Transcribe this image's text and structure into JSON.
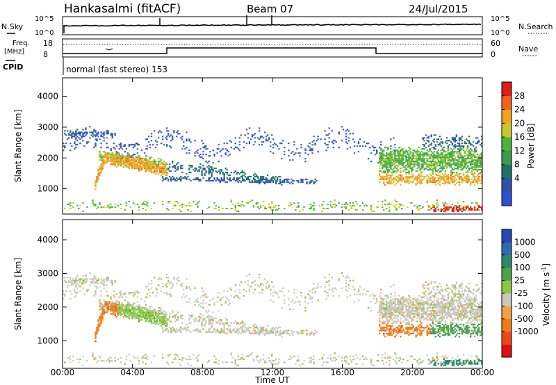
{
  "header": {
    "station": "Hankasalmi (fitACF)",
    "beam": "Beam 07",
    "date": "24/Jul/2015"
  },
  "noise_panel": {
    "left_label": "N.Sky",
    "right_label": "N.Search",
    "left_ticks": [
      "10^5",
      "10^0"
    ],
    "right_ticks": [
      "10^5",
      "10^0"
    ]
  },
  "freq_panel": {
    "left_label_line1": "Freq.",
    "left_label_line2": "[MHz]",
    "left_ticks": [
      "18",
      "8"
    ],
    "right_label": "Nave",
    "right_ticks": [
      "60",
      "0"
    ]
  },
  "cpid": {
    "label": "CPID",
    "text": "normal (fast stereo) 153"
  },
  "chart_data": [
    {
      "type": "heatmap",
      "title": "",
      "xlabel": "",
      "ylabel": "Slant Range [km]",
      "xlim": [
        0,
        24
      ],
      "ylim": [
        180,
        4600
      ],
      "y_ticks": [
        "4000",
        "3000",
        "2000",
        "1000"
      ],
      "colorbar": {
        "label": "Power [dB]",
        "ticks": [
          "28",
          "24",
          "20",
          "16",
          "12",
          "8",
          "4"
        ],
        "colors": [
          "#2e4fd8",
          "#2e53a8",
          "#1d6f68",
          "#3a9a4e",
          "#4ab53c",
          "#c8c82a",
          "#f7a21b",
          "#f06418",
          "#e01d16"
        ]
      },
      "grid": false
    },
    {
      "type": "heatmap",
      "title": "",
      "xlabel": "Time UT",
      "ylabel": "Slant Range [km]",
      "xlim": [
        0,
        24
      ],
      "ylim": [
        180,
        4600
      ],
      "x_ticks": [
        "00:00",
        "04:00",
        "08:00",
        "12:00",
        "16:00",
        "20:00",
        "00:00"
      ],
      "y_ticks": [
        "4000",
        "3000",
        "2000",
        "1000"
      ],
      "colorbar": {
        "label": "Velocity [m s",
        "label_exp": "-1",
        "ticks": [
          "1000",
          "500",
          "100",
          "25",
          "-25",
          "-100",
          "-500",
          "-1000"
        ],
        "colors": [
          "#2747b8",
          "#2b6bb0",
          "#2c8a6a",
          "#4ea34a",
          "#8ac83c",
          "#c8c8c0",
          "#f2a040",
          "#f07a18",
          "#e94a14",
          "#e01010"
        ]
      },
      "grid": false
    }
  ]
}
